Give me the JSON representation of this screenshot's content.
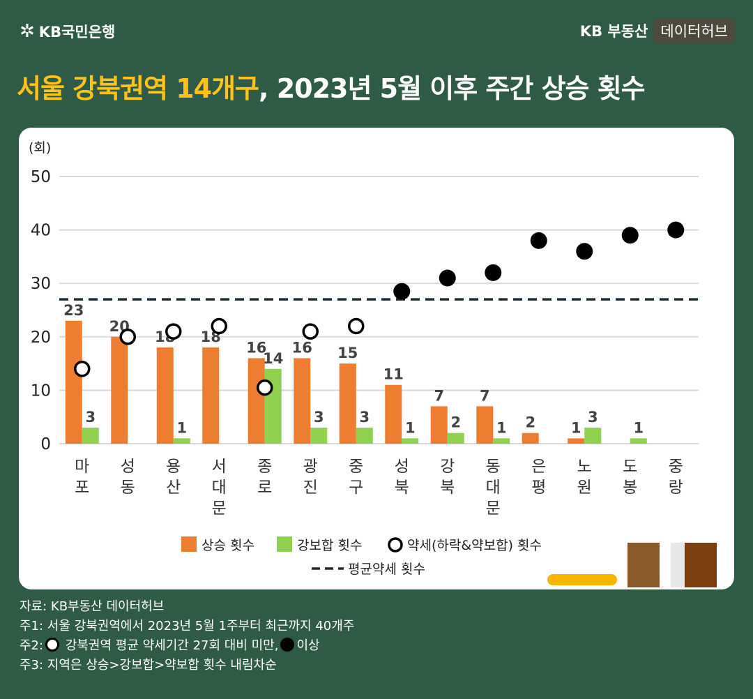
{
  "header": {
    "logo_text": "KB국민은행",
    "logo_icon": "kb-star-icon",
    "brand": "KB 부동산",
    "brand_tag": "데이터허브"
  },
  "title": {
    "highlight": "서울 강북권역 14개구",
    "rest": ", 2023년 5월 이후 주간 상승 횟수"
  },
  "colors": {
    "rise": "#ed7d31",
    "flat": "#92d050",
    "weak_marker": "#000000",
    "accent_title": "#ffc21a",
    "background": "#2f5a45"
  },
  "chart_data": {
    "type": "bar",
    "ylabel": "(회)",
    "ylim": [
      0,
      50
    ],
    "yticks": [
      0,
      10,
      20,
      30,
      40,
      50
    ],
    "grid": true,
    "legend_position": "bottom",
    "categories": [
      "마포",
      "성동",
      "용산",
      "서대문",
      "종로",
      "광진",
      "중구",
      "성북",
      "강북",
      "동대문",
      "은평",
      "노원",
      "도봉",
      "중랑"
    ],
    "series": [
      {
        "name": "상승 횟수",
        "kind": "bar",
        "values": [
          23,
          20,
          18,
          18,
          16,
          16,
          15,
          11,
          7,
          7,
          2,
          1,
          null,
          null
        ]
      },
      {
        "name": "강보합 횟수",
        "kind": "bar",
        "values": [
          3,
          null,
          1,
          null,
          14,
          3,
          3,
          1,
          2,
          1,
          null,
          3,
          1,
          null
        ]
      },
      {
        "name": "약세(하락&약보합) 횟수",
        "kind": "marker",
        "values": [
          14,
          20,
          21,
          22,
          10.5,
          21,
          22,
          28.5,
          31,
          32,
          38,
          36,
          39,
          40
        ]
      },
      {
        "name": "평균약세 횟수",
        "kind": "hline",
        "value": 27
      }
    ],
    "average_threshold": 27
  },
  "notes": {
    "source": "자료: KB부동산 데이터허브",
    "note1": "주1: 서울 강북권역에서 2023년 5월 1주부터 최근까지 40개주",
    "note2_prefix": "주2:",
    "note2_mid": " 강북권역 평균 약세기간 27회 대비 미만,",
    "note2_end": "이상",
    "note3": "주3: 지역은 상승>강보합>약보합 횟수 내림차순"
  }
}
